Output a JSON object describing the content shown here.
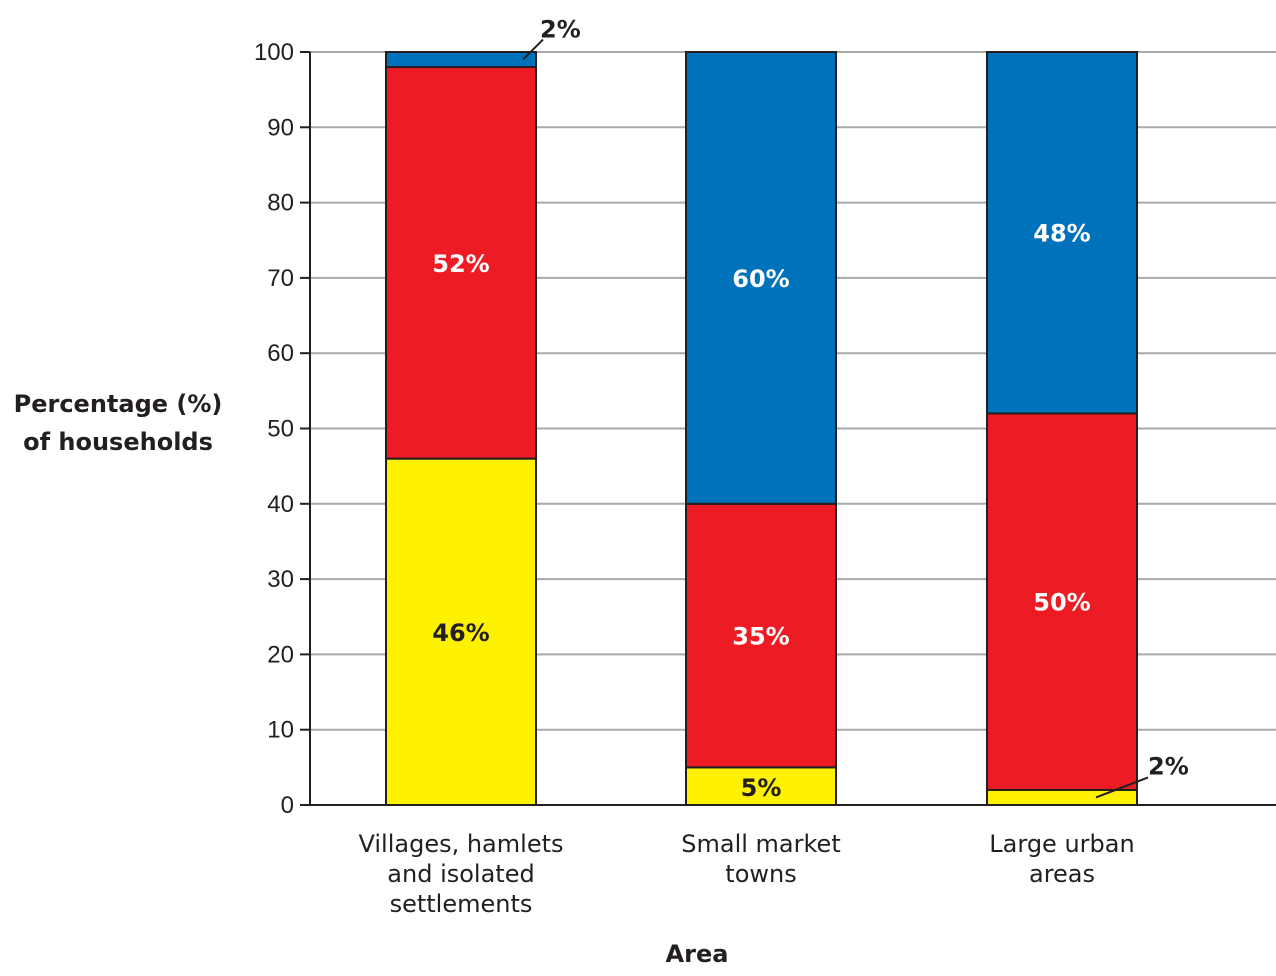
{
  "chart_data": {
    "type": "bar",
    "stacked": true,
    "title": "",
    "xlabel": "Area",
    "ylabel_lines": [
      "Percentage (%)",
      "of households"
    ],
    "ylim": [
      0,
      100
    ],
    "yticks": [
      0,
      10,
      20,
      30,
      40,
      50,
      60,
      70,
      80,
      90,
      100
    ],
    "grid": true,
    "categories": [
      [
        "Villages, hamlets",
        "and isolated",
        "settlements"
      ],
      [
        "Small market",
        "towns"
      ],
      [
        "Large urban",
        "areas"
      ]
    ],
    "series": [
      {
        "color": "#fff200",
        "label_color": "#231f20",
        "values": [
          46,
          5,
          2
        ],
        "labels": [
          "46%",
          "5%",
          "2%"
        ]
      },
      {
        "color": "#ed1c24",
        "label_color": "#ffffff",
        "values": [
          52,
          35,
          50
        ],
        "labels": [
          "52%",
          "35%",
          "50%"
        ]
      },
      {
        "color": "#0072bc",
        "label_color": "#ffffff",
        "values": [
          2,
          60,
          48
        ],
        "labels": [
          "2%",
          "60%",
          "48%"
        ]
      }
    ]
  }
}
